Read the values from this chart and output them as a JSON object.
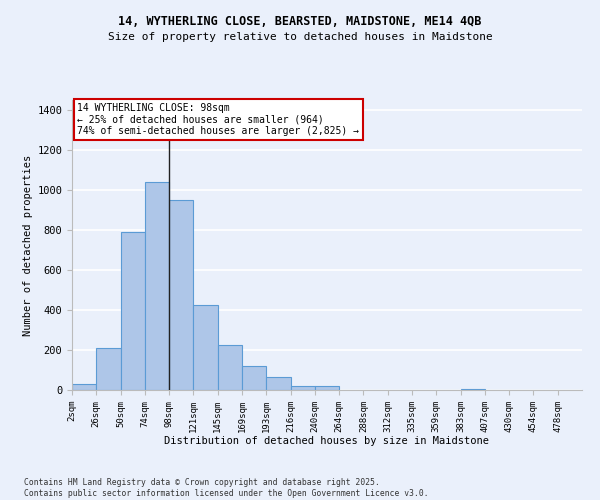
{
  "title_line1": "14, WYTHERLING CLOSE, BEARSTED, MAIDSTONE, ME14 4QB",
  "title_line2": "Size of property relative to detached houses in Maidstone",
  "xlabel": "Distribution of detached houses by size in Maidstone",
  "ylabel": "Number of detached properties",
  "categories": [
    "2sqm",
    "26sqm",
    "50sqm",
    "74sqm",
    "98sqm",
    "121sqm",
    "145sqm",
    "169sqm",
    "193sqm",
    "216sqm",
    "240sqm",
    "264sqm",
    "288sqm",
    "312sqm",
    "335sqm",
    "359sqm",
    "383sqm",
    "407sqm",
    "430sqm",
    "454sqm",
    "478sqm"
  ],
  "values": [
    30,
    210,
    790,
    1040,
    950,
    425,
    225,
    120,
    65,
    20,
    20,
    0,
    0,
    0,
    0,
    0,
    5,
    0,
    0,
    0,
    0
  ],
  "bar_color": "#aec6e8",
  "bar_edge_color": "#5b9bd5",
  "bg_color": "#eaf0fb",
  "grid_color": "#ffffff",
  "vline_x_index": 4,
  "vline_color": "#222222",
  "annotation_text": "14 WYTHERLING CLOSE: 98sqm\n← 25% of detached houses are smaller (964)\n74% of semi-detached houses are larger (2,825) →",
  "annotation_box_color": "#ffffff",
  "annotation_box_edge": "#cc0000",
  "ylim": [
    0,
    1450
  ],
  "yticks": [
    0,
    200,
    400,
    600,
    800,
    1000,
    1200,
    1400
  ],
  "footer": "Contains HM Land Registry data © Crown copyright and database right 2025.\nContains public sector information licensed under the Open Government Licence v3.0."
}
